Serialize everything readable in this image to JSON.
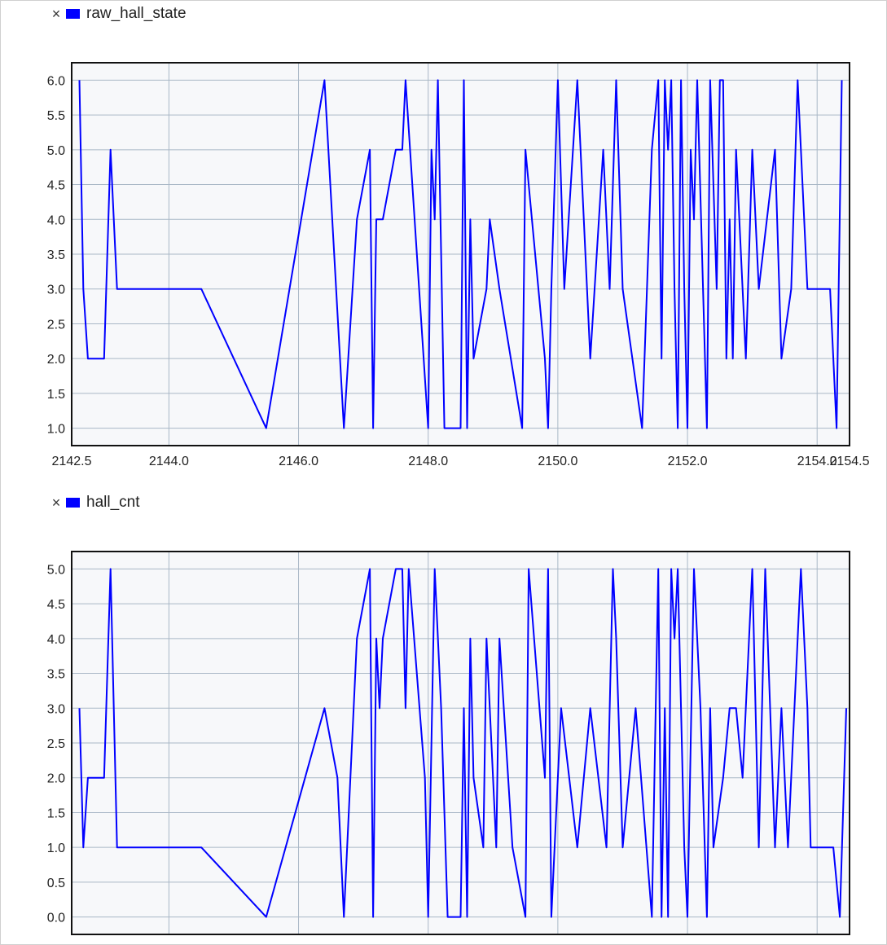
{
  "chart_data": [
    {
      "type": "line",
      "title": "",
      "xlabel": "",
      "ylabel": "",
      "legend": {
        "close_symbol": "×",
        "label": "raw_hall_state",
        "placement": "top-left"
      },
      "series": [
        {
          "name": "raw_hall_state",
          "color": "#0000ff",
          "x": [
            2142.62,
            2142.68,
            2142.75,
            2143.0,
            2143.1,
            2143.2,
            2144.5,
            2145.5,
            2146.4,
            2146.7,
            2146.9,
            2147.1,
            2147.15,
            2147.2,
            2147.25,
            2147.3,
            2147.5,
            2147.6,
            2147.65,
            2148.0,
            2148.05,
            2148.1,
            2148.15,
            2148.25,
            2148.5,
            2148.55,
            2148.6,
            2148.65,
            2148.7,
            2148.9,
            2148.95,
            2149.1,
            2149.45,
            2149.5,
            2149.8,
            2149.85,
            2149.9,
            2150.0,
            2150.1,
            2150.3,
            2150.5,
            2150.7,
            2150.8,
            2150.9,
            2151.0,
            2151.3,
            2151.45,
            2151.55,
            2151.6,
            2151.65,
            2151.7,
            2151.75,
            2151.8,
            2151.85,
            2151.9,
            2151.95,
            2152.0,
            2152.05,
            2152.1,
            2152.15,
            2152.3,
            2152.35,
            2152.45,
            2152.5,
            2152.55,
            2152.6,
            2152.65,
            2152.7,
            2152.75,
            2152.9,
            2153.0,
            2153.1,
            2153.35,
            2153.45,
            2153.6,
            2153.7,
            2153.75,
            2153.85,
            2153.9,
            2154.2,
            2154.3,
            2154.38
          ],
          "y": [
            6,
            3,
            2,
            2,
            5,
            3,
            3,
            1,
            6,
            1,
            4,
            5,
            1,
            4,
            4,
            4,
            5,
            5,
            6,
            1,
            5,
            4,
            6,
            1,
            1,
            6,
            1,
            4,
            2,
            3,
            4,
            3,
            1,
            5,
            2,
            1,
            3,
            6,
            3,
            6,
            2,
            5,
            3,
            6,
            3,
            1,
            5,
            6,
            2,
            6,
            5,
            6,
            3,
            1,
            6,
            3,
            1,
            5,
            4,
            6,
            1,
            6,
            3,
            6,
            6,
            2,
            4,
            2,
            5,
            2,
            5,
            3,
            5,
            2,
            3,
            6,
            5,
            3,
            3,
            3,
            1,
            6
          ]
        }
      ],
      "xlim": [
        2142.5,
        2154.5
      ],
      "ylim": [
        0.75,
        6.25
      ],
      "yticks": [
        "1.0",
        "1.5",
        "2.0",
        "2.5",
        "3.0",
        "3.5",
        "4.0",
        "4.5",
        "5.0",
        "5.5",
        "6.0"
      ],
      "xticks": [
        {
          "value": 2142.5,
          "label": "2142.5"
        },
        {
          "value": 2144.0,
          "label": "2144.0"
        },
        {
          "value": 2146.0,
          "label": "2146.0"
        },
        {
          "value": 2148.0,
          "label": "2148.0"
        },
        {
          "value": 2150.0,
          "label": "2150.0"
        },
        {
          "value": 2152.0,
          "label": "2152.0"
        },
        {
          "value": 2154.0,
          "label": "2154.0"
        },
        {
          "value": 2154.5,
          "label": "2154.5"
        }
      ],
      "grid": true
    },
    {
      "type": "line",
      "title": "",
      "xlabel": "",
      "ylabel": "",
      "legend": {
        "close_symbol": "×",
        "label": "hall_cnt",
        "placement": "top-left"
      },
      "series": [
        {
          "name": "hall_cnt",
          "color": "#0000ff",
          "x": [
            2142.62,
            2142.68,
            2142.75,
            2143.0,
            2143.1,
            2143.2,
            2144.5,
            2145.5,
            2146.4,
            2146.6,
            2146.7,
            2146.9,
            2147.1,
            2147.15,
            2147.2,
            2147.25,
            2147.3,
            2147.5,
            2147.6,
            2147.65,
            2147.7,
            2147.95,
            2148.0,
            2148.1,
            2148.2,
            2148.3,
            2148.5,
            2148.55,
            2148.6,
            2148.65,
            2148.7,
            2148.85,
            2148.9,
            2149.05,
            2149.1,
            2149.3,
            2149.5,
            2149.55,
            2149.8,
            2149.85,
            2149.9,
            2150.05,
            2150.3,
            2150.5,
            2150.75,
            2150.85,
            2150.9,
            2151.0,
            2151.2,
            2151.45,
            2151.55,
            2151.6,
            2151.65,
            2151.7,
            2151.75,
            2151.8,
            2151.85,
            2151.9,
            2151.95,
            2152.0,
            2152.1,
            2152.15,
            2152.2,
            2152.3,
            2152.35,
            2152.4,
            2152.55,
            2152.65,
            2152.75,
            2152.85,
            2153.0,
            2153.1,
            2153.2,
            2153.35,
            2153.45,
            2153.55,
            2153.75,
            2153.85,
            2153.9,
            2154.25,
            2154.35,
            2154.45
          ],
          "y": [
            3,
            1,
            2,
            2,
            5,
            1,
            1,
            0,
            3,
            2,
            0,
            4,
            5,
            0,
            4,
            3,
            4,
            5,
            5,
            3,
            5,
            2,
            0,
            5,
            3,
            0,
            0,
            3,
            0,
            4,
            2,
            1,
            4,
            1,
            4,
            1,
            0,
            5,
            2,
            5,
            0,
            3,
            1,
            3,
            1,
            5,
            4,
            1,
            3,
            0,
            5,
            0,
            3,
            0,
            5,
            4,
            5,
            3,
            1,
            0,
            5,
            4,
            3,
            0,
            3,
            1,
            2,
            3,
            3,
            2,
            5,
            1,
            5,
            1,
            3,
            1,
            5,
            3,
            1,
            1,
            0,
            3
          ]
        }
      ],
      "xlim": [
        2142.5,
        2154.5
      ],
      "ylim": [
        -0.25,
        5.25
      ],
      "yticks": [
        "0.0",
        "0.5",
        "1.0",
        "1.5",
        "2.0",
        "2.5",
        "3.0",
        "3.5",
        "4.0",
        "4.5",
        "5.0"
      ],
      "xticks": [
        {
          "value": 2142.5,
          "label": ""
        },
        {
          "value": 2144.0,
          "label": ""
        },
        {
          "value": 2146.0,
          "label": ""
        },
        {
          "value": 2148.0,
          "label": ""
        },
        {
          "value": 2150.0,
          "label": ""
        },
        {
          "value": 2152.0,
          "label": ""
        },
        {
          "value": 2154.0,
          "label": ""
        }
      ],
      "grid": true
    }
  ]
}
